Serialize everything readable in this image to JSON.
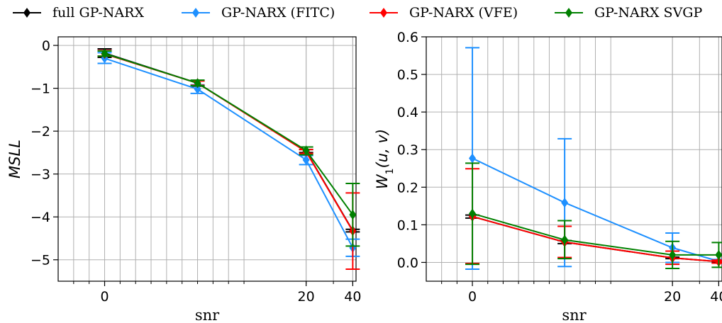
{
  "legend": {
    "entries": [
      {
        "label": "full GP-NARX",
        "color": "#000000"
      },
      {
        "label": "GP-NARX (FITC)",
        "color": "#1e90ff"
      },
      {
        "label": "GP-NARX (VFE)",
        "color": "#ff0000"
      },
      {
        "label": "GP-NARX SVGP",
        "color": "#008000"
      }
    ],
    "placement": "top, above both panels",
    "marker": "diamond"
  },
  "chart_data": [
    {
      "type": "line",
      "subplot": "left",
      "xlabel": "snr",
      "ylabel": "MSLL",
      "xlim": [
        -3,
        42
      ],
      "ylim": [
        -5.5,
        0.2
      ],
      "xscale": "symlog",
      "xticks": [
        0,
        20,
        40
      ],
      "xtick_labels": [
        "0",
        "20",
        "40"
      ],
      "yticks": [
        0,
        -1,
        -2,
        -3,
        -4,
        -5
      ],
      "ytick_labels": [
        "0",
        "−1",
        "−2",
        "−3",
        "−4",
        "−5"
      ],
      "grid": true,
      "x": [
        0,
        6,
        20,
        40
      ],
      "series": [
        {
          "name": "full GP-NARX",
          "color": "#000000",
          "values": [
            -0.18,
            -0.88,
            -2.47,
            -4.32
          ],
          "err_low": [
            -0.28,
            -0.95,
            -2.5,
            -4.35
          ],
          "err_high": [
            -0.08,
            -0.82,
            -2.43,
            -4.29
          ]
        },
        {
          "name": "GP-NARX (FITC)",
          "color": "#1e90ff",
          "values": [
            -0.3,
            -1.02,
            -2.67,
            -4.72
          ],
          "err_low": [
            -0.42,
            -1.12,
            -2.78,
            -4.92
          ],
          "err_high": [
            -0.17,
            -0.92,
            -2.57,
            -4.52
          ]
        },
        {
          "name": "GP-NARX (VFE)",
          "color": "#ff0000",
          "values": [
            -0.2,
            -0.88,
            -2.48,
            -4.33
          ],
          "err_low": [
            -0.25,
            -0.93,
            -2.52,
            -5.22
          ],
          "err_high": [
            -0.12,
            -0.83,
            -2.43,
            -3.44
          ]
        },
        {
          "name": "GP-NARX SVGP",
          "color": "#008000",
          "values": [
            -0.19,
            -0.88,
            -2.45,
            -3.95
          ],
          "err_low": [
            -0.25,
            -0.94,
            -2.55,
            -4.68
          ],
          "err_high": [
            -0.13,
            -0.81,
            -2.37,
            -3.22
          ]
        }
      ]
    },
    {
      "type": "line",
      "subplot": "right",
      "xlabel": "snr",
      "ylabel": "W_1(u, v)",
      "xlim": [
        -3,
        42
      ],
      "ylim": [
        -0.05,
        0.6
      ],
      "xscale": "symlog",
      "xticks": [
        0,
        20,
        40
      ],
      "xtick_labels": [
        "0",
        "20",
        "40"
      ],
      "yticks": [
        0.0,
        0.1,
        0.2,
        0.3,
        0.4,
        0.5,
        0.6
      ],
      "ytick_labels": [
        "0.0",
        "0.1",
        "0.2",
        "0.3",
        "0.4",
        "0.5",
        "0.6"
      ],
      "grid": true,
      "x": [
        0,
        6,
        20,
        40
      ],
      "series": [
        {
          "name": "full GP-NARX",
          "color": "#000000",
          "values": [
            0.122,
            0.054,
            0.012,
            0.002
          ],
          "err_low": [
            0.118,
            0.05,
            0.01,
            0.0
          ],
          "err_high": [
            0.126,
            0.058,
            0.014,
            0.004
          ]
        },
        {
          "name": "GP-NARX (FITC)",
          "color": "#1e90ff",
          "values": [
            0.277,
            0.159,
            0.039,
            0.003
          ],
          "err_low": [
            -0.018,
            -0.011,
            0.0,
            -0.002
          ],
          "err_high": [
            0.571,
            0.329,
            0.078,
            0.008
          ]
        },
        {
          "name": "GP-NARX (VFE)",
          "color": "#ff0000",
          "values": [
            0.122,
            0.054,
            0.012,
            0.002
          ],
          "err_low": [
            -0.003,
            0.013,
            -0.005,
            -0.002
          ],
          "err_high": [
            0.249,
            0.096,
            0.03,
            0.006
          ]
        },
        {
          "name": "GP-NARX SVGP",
          "color": "#008000",
          "values": [
            0.13,
            0.06,
            0.02,
            0.02
          ],
          "err_low": [
            -0.005,
            0.01,
            -0.016,
            -0.013
          ],
          "err_high": [
            0.264,
            0.111,
            0.056,
            0.053
          ]
        }
      ]
    }
  ]
}
